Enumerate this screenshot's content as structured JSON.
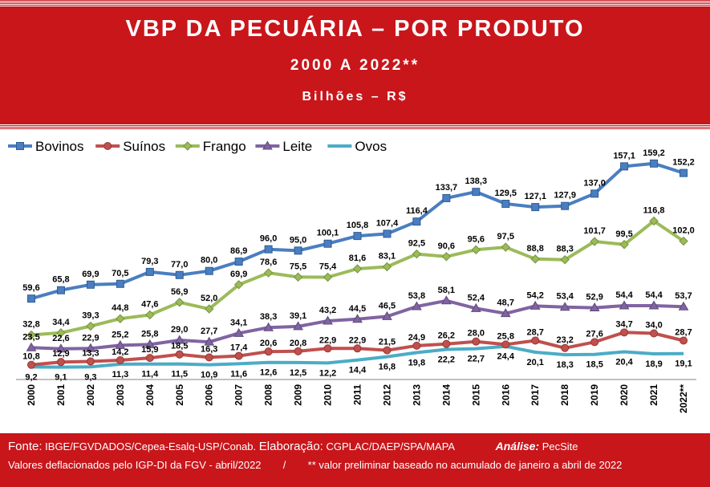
{
  "header": {
    "title": "VBP DA PECUÁRIA – POR PRODUTO",
    "subtitle": "2000 A 2022**",
    "unit": "Bilhões – R$"
  },
  "chart_data": {
    "type": "line",
    "x": [
      "2000",
      "2001",
      "2002",
      "2003",
      "2004",
      "2005",
      "2006",
      "2007",
      "2008",
      "2009",
      "2010",
      "2011",
      "2012",
      "2013",
      "2014",
      "2015",
      "2016",
      "2017",
      "2018",
      "2019",
      "2020",
      "2021",
      "2022**"
    ],
    "legend_position": "top-left",
    "grid": false,
    "series": [
      {
        "name": "Bovinos",
        "color": "#4a7ec0",
        "marker": "square",
        "values": [
          59.6,
          65.8,
          69.9,
          70.5,
          79.3,
          77.0,
          80.0,
          86.9,
          96.0,
          95.0,
          100.1,
          105.8,
          107.4,
          116.4,
          133.7,
          138.3,
          129.5,
          127.1,
          127.9,
          137.0,
          157.1,
          159.2,
          152.2
        ],
        "labels": [
          "59,6",
          "65,8",
          "69,9",
          "70,5",
          "79,3",
          "77,0",
          "80,0",
          "86,9",
          "96,0",
          "95,0",
          "100,1",
          "105,8",
          "107,4",
          "116,4",
          "133,7",
          "138,3",
          "129,5",
          "127,1",
          "127,9",
          "137,0",
          "157,1",
          "159,2",
          "152,2"
        ]
      },
      {
        "name": "Suínos",
        "color": "#c0504d",
        "marker": "circle",
        "values": [
          10.8,
          12.9,
          13.3,
          14.2,
          15.9,
          18.5,
          16.3,
          17.4,
          20.6,
          20.8,
          22.9,
          22.9,
          21.5,
          24.9,
          26.2,
          28.0,
          25.8,
          28.7,
          23.2,
          27.6,
          34.7,
          34.0,
          28.7
        ],
        "labels": [
          "10,8",
          "12,9",
          "13,3",
          "14,2",
          "15,9",
          "18,5",
          "16,3",
          "17,4",
          "20,6",
          "20,8",
          "22,9",
          "22,9",
          "21,5",
          "24,9",
          "26,2",
          "28,0",
          "25,8",
          "28,7",
          "23,2",
          "27,6",
          "34,7",
          "34,0",
          "28,7"
        ]
      },
      {
        "name": "Frango",
        "color": "#9bbb59",
        "marker": "diamond",
        "values": [
          32.8,
          34.4,
          39.3,
          44.8,
          47.6,
          56.9,
          52.0,
          69.9,
          78.6,
          75.5,
          75.4,
          81.6,
          83.1,
          92.5,
          90.6,
          95.6,
          97.5,
          88.8,
          88.3,
          101.7,
          99.5,
          116.8,
          102.0
        ],
        "labels": [
          "32,8",
          "34,4",
          "39,3",
          "44,8",
          "47,6",
          "56,9",
          "52,0",
          "69,9",
          "78,6",
          "75,5",
          "75,4",
          "81,6",
          "83,1",
          "92,5",
          "90,6",
          "95,6",
          "97,5",
          "88,8",
          "88,3",
          "101,7",
          "99,5",
          "116,8",
          "102,0"
        ]
      },
      {
        "name": "Leite",
        "color": "#8064a2",
        "marker": "triangle",
        "values": [
          23.5,
          22.6,
          22.9,
          25.2,
          25.8,
          29.0,
          27.7,
          34.1,
          38.3,
          39.1,
          43.2,
          44.5,
          46.5,
          53.8,
          58.1,
          52.4,
          48.7,
          54.2,
          53.4,
          52.9,
          54.4,
          54.4,
          53.7
        ],
        "labels": [
          "23,5",
          "22,6",
          "22,9",
          "25,2",
          "25,8",
          "29,0",
          "27,7",
          "34,1",
          "38,3",
          "39,1",
          "43,2",
          "44,5",
          "46,5",
          "53,8",
          "58,1",
          "52,4",
          "48,7",
          "54,2",
          "53,4",
          "52,9",
          "54,4",
          "54,4",
          "53,7"
        ]
      },
      {
        "name": "Ovos",
        "color": "#4bacc6",
        "marker": "none",
        "values": [
          9.2,
          9.1,
          9.3,
          11.3,
          11.4,
          11.5,
          10.9,
          11.6,
          12.6,
          12.5,
          12.2,
          14.4,
          16.8,
          19.8,
          22.2,
          22.7,
          24.4,
          20.1,
          18.3,
          18.5,
          20.4,
          18.9,
          19.1
        ],
        "labels": [
          "9,2",
          "9,1",
          "9,3",
          "11,3",
          "11,4",
          "11,5",
          "10,9",
          "11,6",
          "12,6",
          "12,5",
          "12,2",
          "14,4",
          "16,8",
          "19,8",
          "22,2",
          "22,7",
          "24,4",
          "20,1",
          "18,3",
          "18,5",
          "20,4",
          "18,9",
          "19,1"
        ]
      }
    ]
  },
  "footer": {
    "fonte_label": "Fonte:",
    "fonte_text": "IBGE/FGVDADOS/Cepea-Esalq-USP/Conab.",
    "elaboracao_label": "Elaboração:",
    "elaboracao_text": "CGPLAC/DAEP/SPA/MAPA",
    "analise_label": "Análise:",
    "analise_text": "PecSite",
    "note_left": "Valores deflacionados pelo IGP-DI da FGV - abril/2022",
    "separator": "/",
    "note_right": "** valor preliminar baseado no acumulado de janeiro a abril de 2022"
  }
}
